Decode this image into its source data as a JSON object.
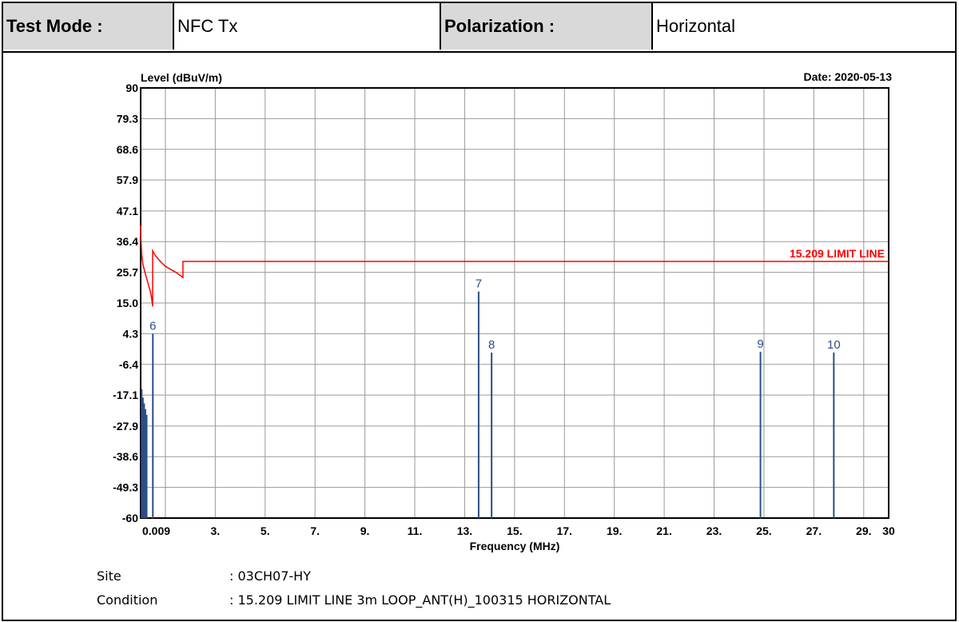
{
  "header": {
    "test_mode_label": "Test Mode :",
    "test_mode_value": "NFC Tx",
    "polarization_label": "Polarization :",
    "polarization_value": "Horizontal"
  },
  "info": {
    "site_label": "Site",
    "site_value": ": 03CH07-HY",
    "condition_label": "Condition",
    "condition_value": ": 15.209 LIMIT LINE 3m LOOP_ANT(H)_100315 HORIZONTAL"
  },
  "chart_data": {
    "type": "line",
    "ylabel": "Level (dBuV/m)",
    "xlabel": "Frequency (MHz)",
    "date": "Date: 2020-05-13",
    "limit_label": "15.209 LIMIT LINE",
    "xlim": [
      0.009,
      30
    ],
    "ylim": [
      -60,
      90
    ],
    "x_ticks": [
      {
        "v": 0.009,
        "label": "0.009"
      },
      {
        "v": 3,
        "label": "3."
      },
      {
        "v": 5,
        "label": "5."
      },
      {
        "v": 7,
        "label": "7."
      },
      {
        "v": 9,
        "label": "9."
      },
      {
        "v": 11,
        "label": "11."
      },
      {
        "v": 13,
        "label": "13."
      },
      {
        "v": 15,
        "label": "15."
      },
      {
        "v": 17,
        "label": "17."
      },
      {
        "v": 19,
        "label": "19."
      },
      {
        "v": 21,
        "label": "21."
      },
      {
        "v": 23,
        "label": "23."
      },
      {
        "v": 25,
        "label": "25."
      },
      {
        "v": 27,
        "label": "27."
      },
      {
        "v": 29,
        "label": "29."
      },
      {
        "v": 30,
        "label": "30"
      }
    ],
    "y_ticks": [
      {
        "v": 90,
        "label": "90"
      },
      {
        "v": 79.3,
        "label": "79.3"
      },
      {
        "v": 68.6,
        "label": "68.6"
      },
      {
        "v": 57.9,
        "label": "57.9"
      },
      {
        "v": 47.1,
        "label": "47.1"
      },
      {
        "v": 36.4,
        "label": "36.4"
      },
      {
        "v": 25.7,
        "label": "25.7"
      },
      {
        "v": 15.0,
        "label": "15.0"
      },
      {
        "v": 4.3,
        "label": "4.3"
      },
      {
        "v": -6.4,
        "label": "-6.4"
      },
      {
        "v": -17.1,
        "label": "-17.1"
      },
      {
        "v": -27.9,
        "label": "-27.9"
      },
      {
        "v": -38.6,
        "label": "-38.6"
      },
      {
        "v": -49.3,
        "label": "-49.3"
      },
      {
        "v": -60,
        "label": "-60"
      }
    ],
    "x_grid": [
      1,
      3,
      5,
      7,
      9,
      11,
      13,
      15,
      17,
      19,
      21,
      23,
      25,
      27,
      29
    ],
    "limit_line": [
      [
        0.009,
        42
      ],
      [
        0.02,
        38
      ],
      [
        0.05,
        32
      ],
      [
        0.1,
        28.5
      ],
      [
        0.2,
        25
      ],
      [
        0.3,
        22
      ],
      [
        0.4,
        19
      ],
      [
        0.45,
        16.5
      ],
      [
        0.49,
        13.8
      ],
      [
        0.49,
        33.2
      ],
      [
        0.6,
        31.5
      ],
      [
        0.8,
        29.5
      ],
      [
        1.0,
        27.8
      ],
      [
        1.2,
        26.8
      ],
      [
        1.4,
        25.8
      ],
      [
        1.6,
        24.6
      ],
      [
        1.705,
        23.9
      ],
      [
        1.705,
        29.5
      ],
      [
        30,
        29.5
      ]
    ],
    "limit_color": "#ff0000",
    "marker_color": "#2c4f86",
    "markers": [
      {
        "label": "",
        "x": 0.05,
        "y": -15
      },
      {
        "label": "",
        "x": 0.1,
        "y": -18
      },
      {
        "label": "",
        "x": 0.15,
        "y": -20
      },
      {
        "label": "",
        "x": 0.2,
        "y": -22
      },
      {
        "label": "",
        "x": 0.25,
        "y": -24
      },
      {
        "label": "6",
        "x": 0.498,
        "y": 4.3
      },
      {
        "label": "7",
        "x": 13.56,
        "y": 19.0
      },
      {
        "label": "8",
        "x": 14.08,
        "y": -2.3
      },
      {
        "label": "9",
        "x": 24.86,
        "y": -2.0
      },
      {
        "label": "10",
        "x": 27.8,
        "y": -2.3
      }
    ]
  }
}
